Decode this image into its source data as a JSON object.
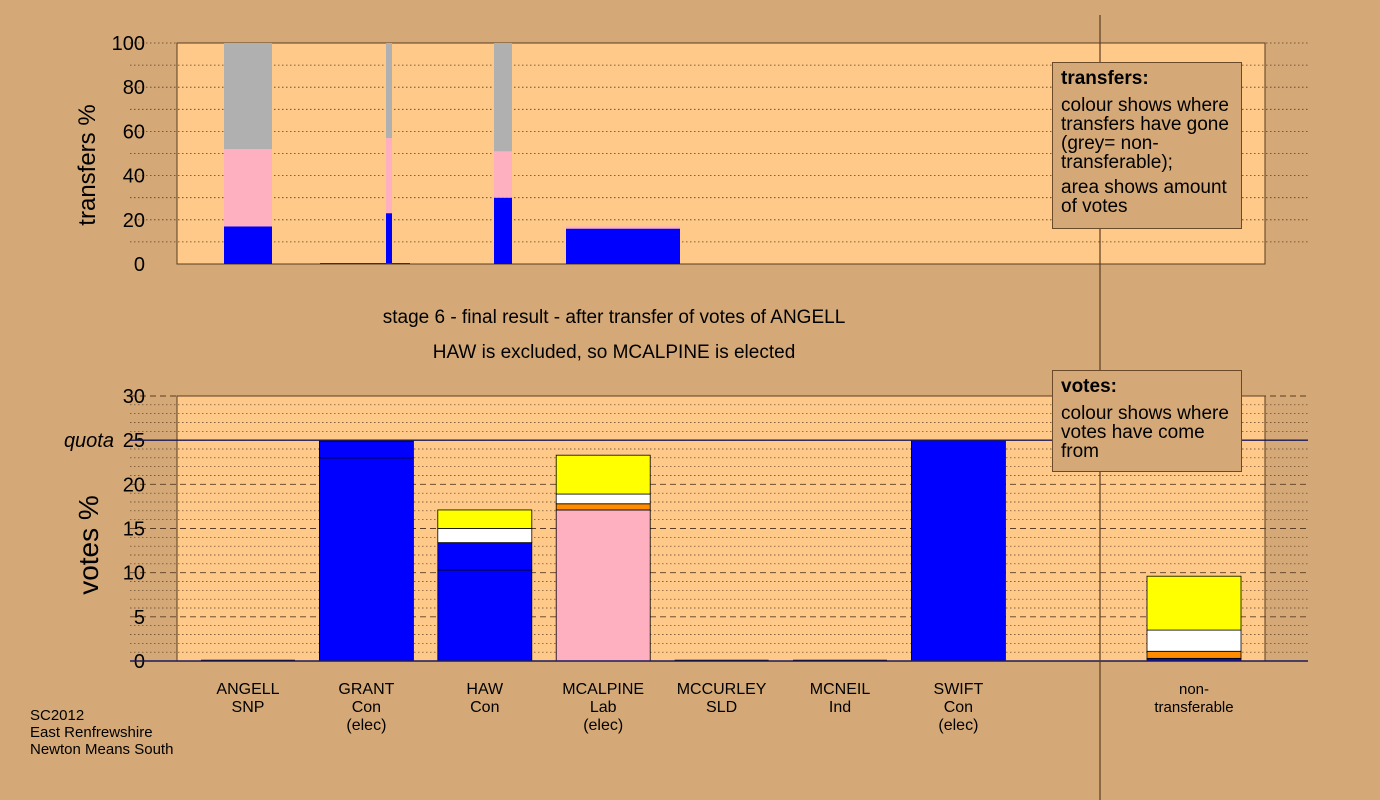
{
  "colors": {
    "background": "#d4a977",
    "plot_background": "#ffc98a",
    "SNP": "#ffff00",
    "Con": "#0000ff",
    "Lab": "#ffb0c0",
    "SLD": "#ff8c00",
    "Ind": "#ffffff",
    "non_transferable": "#b0b0b0"
  },
  "headline": {
    "line1": "stage 6 - final result - after transfer of votes of ANGELL",
    "line2": "HAW is excluded, so MCALPINE is elected"
  },
  "legend_boxes": {
    "transfers": {
      "title": "transfers:",
      "text1": "colour shows where transfers have gone (grey= non-transferable);",
      "text2": "area shows amount of votes"
    },
    "votes": {
      "title": "votes:",
      "text1": "colour shows where votes have come from"
    }
  },
  "footer": {
    "line1": "SC2012",
    "line2": "East Renfrewshire",
    "line3": "Newton Means South"
  },
  "chart_data": [
    {
      "type": "bar",
      "ylabel": "transfers %",
      "ylim": [
        0,
        100
      ],
      "yticks": [
        0,
        20,
        40,
        60,
        80,
        100
      ],
      "grid": "dotted, every 10",
      "bars": [
        {
          "x": [
            0,
            4.0
          ],
          "segments": [
            {
              "party": "Con",
              "value": 17
            },
            {
              "party": "Lab",
              "value": 35
            },
            {
              "party": "non_transferable",
              "value": 48
            }
          ]
        },
        {
          "x": [
            13.5,
            14.0
          ],
          "segments": [
            {
              "party": "Con",
              "value": 23
            },
            {
              "party": "Lab",
              "value": 34
            },
            {
              "party": "non_transferable",
              "value": 43
            }
          ]
        },
        {
          "x": [
            22.5,
            24.0
          ],
          "segments": [
            {
              "party": "Con",
              "value": 30
            },
            {
              "party": "Lab",
              "value": 21
            },
            {
              "party": "non_transferable",
              "value": 49
            }
          ]
        },
        {
          "x": [
            28.5,
            38.0
          ],
          "segments": [
            {
              "party": "Con",
              "value": 16
            },
            {
              "party": "Lab",
              "value": 1
            }
          ]
        }
      ]
    },
    {
      "type": "bar",
      "ylabel": "votes %",
      "ylim": [
        0,
        30
      ],
      "yticks": [
        0,
        5,
        10,
        15,
        20,
        25,
        30
      ],
      "grid": "dashed every 5, dotted every 1",
      "quota": {
        "label": "quota",
        "value": 25
      },
      "categories": [
        {
          "name": "ANGELL",
          "party": "SNP",
          "status": ""
        },
        {
          "name": "GRANT",
          "party": "Con",
          "status": "(elec)"
        },
        {
          "name": "HAW",
          "party": "Con",
          "status": ""
        },
        {
          "name": "MCALPINE",
          "party": "Lab",
          "status": "(elec)"
        },
        {
          "name": "MCCURLEY",
          "party": "SLD",
          "status": ""
        },
        {
          "name": "MCNEIL",
          "party": "Ind",
          "status": ""
        },
        {
          "name": "SWIFT",
          "party": "Con",
          "status": "(elec)"
        },
        {
          "name": "non-",
          "party": "transferable",
          "status": ""
        }
      ],
      "stacks": [
        {
          "segments": []
        },
        {
          "segments": [
            {
              "party": "Con",
              "value": 23.0
            },
            {
              "party": "Con",
              "value": 1.9
            },
            {
              "party": "SLD",
              "value": 0.1
            }
          ]
        },
        {
          "segments": [
            {
              "party": "Con",
              "value": 10.3
            },
            {
              "party": "Con",
              "value": 3.1
            },
            {
              "party": "Ind",
              "value": 1.6
            },
            {
              "party": "SNP",
              "value": 2.1
            }
          ]
        },
        {
          "segments": [
            {
              "party": "Lab",
              "value": 17.1
            },
            {
              "party": "SLD",
              "value": 0.7
            },
            {
              "party": "Ind",
              "value": 1.1
            },
            {
              "party": "SNP",
              "value": 4.4
            }
          ]
        },
        {
          "segments": []
        },
        {
          "segments": []
        },
        {
          "segments": [
            {
              "party": "Con",
              "value": 25.0
            }
          ]
        },
        {
          "segments": [
            {
              "party": "Con",
              "value": 0.3
            },
            {
              "party": "SLD",
              "value": 0.8
            },
            {
              "party": "Ind",
              "value": 2.4
            },
            {
              "party": "SNP",
              "value": 6.1
            }
          ]
        }
      ]
    }
  ]
}
